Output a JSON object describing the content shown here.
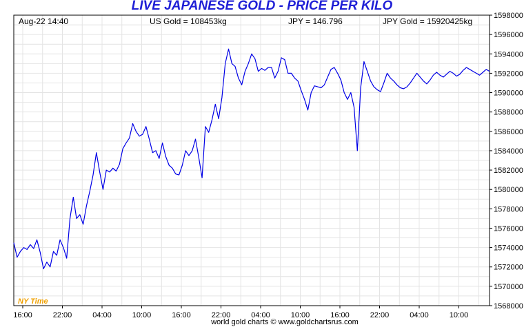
{
  "chart_data": {
    "type": "line",
    "title": "LIVE JAPANESE GOLD - PRICE PER KILO",
    "info": {
      "date_time": "Aug-22  14:40",
      "us_gold": "US Gold = 108453kg",
      "jpy_rate": "JPY = 146.796",
      "jpy_gold": "JPY Gold = 15920425kg"
    },
    "timezone_label": "NY Time",
    "credit": "world gold charts © www.goldchartsrus.com",
    "ylim": [
      1568000,
      1598000
    ],
    "y_ticks": [
      "1568000",
      "1570000",
      "1572000",
      "1574000",
      "1576000",
      "1578000",
      "1580000",
      "1582000",
      "1584000",
      "1586000",
      "1588000",
      "1590000",
      "1592000",
      "1594000",
      "1596000",
      "1598000"
    ],
    "x_ticks": [
      "16:00",
      "22:00",
      "04:00",
      "10:00",
      "16:00",
      "22:00",
      "04:00",
      "10:00",
      "16:00",
      "22:00",
      "04:00",
      "10:00"
    ],
    "grid": true,
    "colors": {
      "line": "#0000e6",
      "title": "#1f1fd6",
      "timezone": "#f0a000",
      "grid": "#e4e4e4"
    },
    "series": [
      {
        "x": [
          0,
          1,
          2,
          3,
          4,
          5,
          6,
          7,
          8,
          9,
          10,
          11,
          12,
          13,
          14,
          15,
          16,
          17,
          18,
          19,
          20,
          21,
          22,
          23,
          24,
          25,
          26,
          27,
          28,
          29,
          30,
          31,
          32,
          33,
          34,
          35,
          36,
          37,
          38,
          39,
          40,
          41,
          42,
          43,
          44,
          45,
          46,
          47,
          48,
          49,
          50,
          51,
          52,
          53,
          54,
          55,
          56,
          57,
          58,
          59,
          60,
          61,
          62,
          63,
          64,
          65,
          66,
          67,
          68,
          69,
          70,
          71,
          72,
          73,
          74,
          75,
          76,
          77,
          78,
          79,
          80,
          81,
          82,
          83,
          84,
          85,
          86,
          87,
          88,
          89,
          90,
          91,
          92,
          93,
          94,
          95,
          96,
          97,
          98,
          99,
          100,
          101,
          102,
          103,
          104,
          105,
          106,
          107,
          108,
          109,
          110,
          111,
          112,
          113,
          114,
          115,
          116,
          117,
          118,
          119,
          120,
          121,
          122,
          123,
          124,
          125,
          126,
          127,
          128,
          129,
          130,
          131,
          132,
          133,
          134,
          135,
          136,
          137,
          138,
          139,
          140,
          141,
          142,
          143,
          144
        ],
        "values": [
          1574500,
          1573000,
          1573600,
          1574000,
          1573800,
          1574300,
          1573900,
          1574800,
          1573500,
          1571800,
          1572500,
          1572000,
          1573600,
          1573200,
          1574800,
          1574000,
          1572900,
          1577000,
          1579200,
          1577000,
          1577400,
          1576400,
          1578300,
          1579800,
          1581500,
          1583800,
          1581800,
          1580000,
          1582000,
          1581800,
          1582200,
          1581900,
          1582600,
          1584200,
          1584800,
          1585300,
          1586800,
          1586000,
          1585500,
          1585700,
          1586500,
          1585200,
          1583800,
          1584000,
          1583200,
          1584800,
          1583400,
          1582500,
          1582200,
          1581600,
          1581500,
          1582500,
          1584000,
          1583500,
          1584000,
          1585200,
          1583300,
          1581200,
          1586500,
          1585900,
          1587200,
          1588800,
          1587300,
          1589500,
          1593000,
          1594500,
          1593000,
          1592700,
          1591500,
          1590800,
          1592200,
          1593000,
          1594000,
          1593500,
          1592200,
          1592500,
          1592300,
          1592600,
          1592600,
          1591500,
          1592200,
          1593600,
          1593400,
          1592000,
          1592000,
          1591500,
          1591200,
          1590200,
          1589300,
          1588200,
          1590000,
          1590700,
          1590600,
          1590500,
          1590800,
          1591600,
          1592400,
          1592600,
          1592000,
          1591300,
          1590000,
          1589300,
          1590000,
          1588500,
          1584000,
          1590500,
          1593200,
          1592200,
          1591200,
          1590600,
          1590300,
          1590100,
          1591000,
          1592000,
          1591500,
          1591200,
          1590800,
          1590500,
          1590400,
          1590600,
          1591000,
          1591500,
          1592000,
          1591600,
          1591200,
          1590900,
          1591300,
          1591800,
          1592100,
          1591800,
          1591600,
          1591900,
          1592200,
          1592000,
          1591700,
          1591900,
          1592300,
          1592600,
          1592400,
          1592200,
          1592000,
          1591800,
          1592100,
          1592400,
          1592200
        ]
      }
    ]
  }
}
